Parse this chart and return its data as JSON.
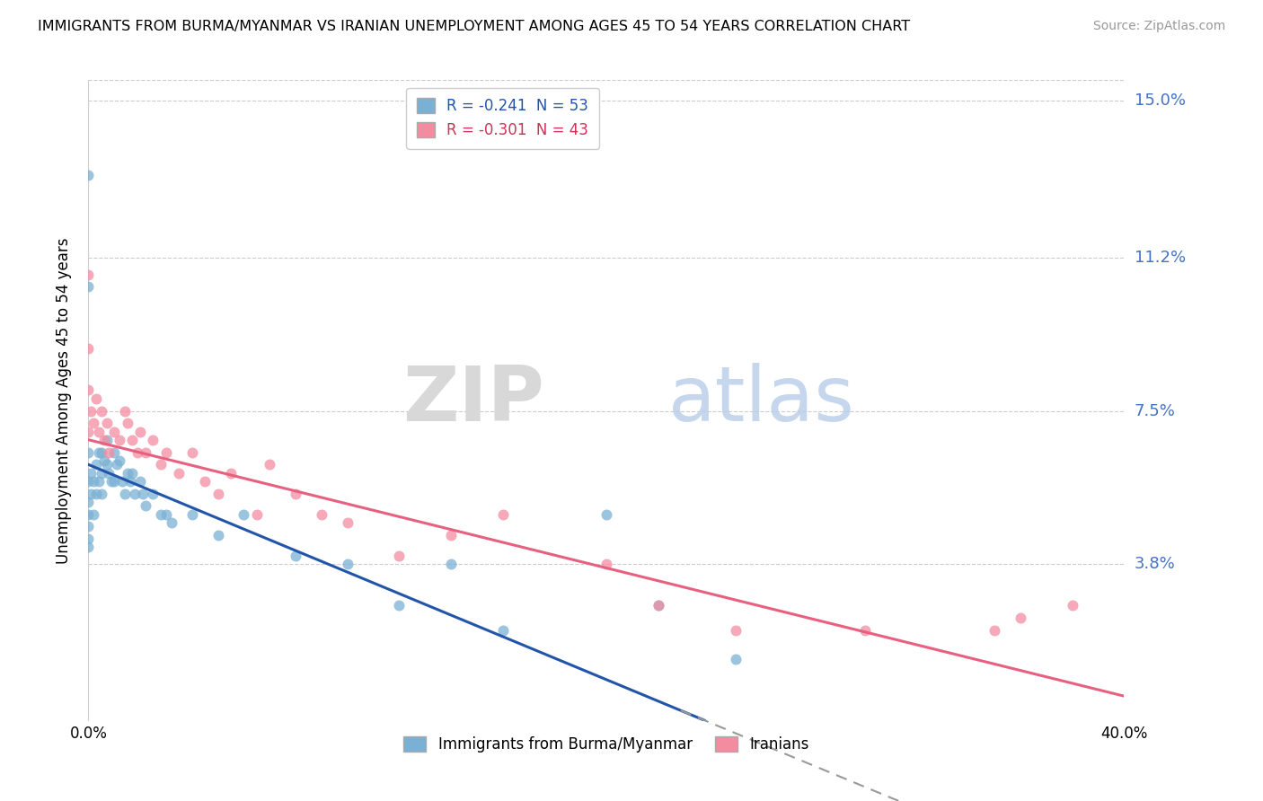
{
  "title": "IMMIGRANTS FROM BURMA/MYANMAR VS IRANIAN UNEMPLOYMENT AMONG AGES 45 TO 54 YEARS CORRELATION CHART",
  "source": "Source: ZipAtlas.com",
  "ylabel": "Unemployment Among Ages 45 to 54 years",
  "xmin": 0.0,
  "xmax": 0.4,
  "ymin": 0.0,
  "ymax": 0.155,
  "yticks": [
    0.0,
    0.038,
    0.075,
    0.112,
    0.15
  ],
  "ytick_labels": [
    "",
    "3.8%",
    "7.5%",
    "11.2%",
    "15.0%"
  ],
  "xtick_labels": [
    "0.0%",
    "40.0%"
  ],
  "r_blue": -0.241,
  "n_blue": 53,
  "r_pink": -0.301,
  "n_pink": 43,
  "color_blue": "#7ab0d4",
  "color_pink": "#f48ca0",
  "line_blue": "#2255aa",
  "line_pink": "#e86080",
  "legend_blue": "Immigrants from Burma/Myanmar",
  "legend_pink": "Iranians",
  "watermark_zip": "ZIP",
  "watermark_atlas": "atlas",
  "blue_intercept": 0.062,
  "blue_slope": -0.26,
  "pink_intercept": 0.068,
  "pink_slope": -0.155,
  "blue_scatter_x": [
    0.0,
    0.0,
    0.0,
    0.0,
    0.0,
    0.0,
    0.0,
    0.0,
    0.0,
    0.001,
    0.001,
    0.002,
    0.002,
    0.003,
    0.003,
    0.004,
    0.004,
    0.005,
    0.005,
    0.005,
    0.006,
    0.007,
    0.007,
    0.008,
    0.009,
    0.01,
    0.01,
    0.011,
    0.012,
    0.013,
    0.014,
    0.015,
    0.016,
    0.017,
    0.018,
    0.02,
    0.021,
    0.022,
    0.025,
    0.028,
    0.03,
    0.032,
    0.04,
    0.05,
    0.06,
    0.08,
    0.1,
    0.12,
    0.14,
    0.16,
    0.2,
    0.22,
    0.25
  ],
  "blue_scatter_y": [
    0.132,
    0.105,
    0.065,
    0.058,
    0.053,
    0.05,
    0.047,
    0.044,
    0.042,
    0.06,
    0.055,
    0.058,
    0.05,
    0.062,
    0.055,
    0.065,
    0.058,
    0.065,
    0.06,
    0.055,
    0.063,
    0.068,
    0.062,
    0.06,
    0.058,
    0.065,
    0.058,
    0.062,
    0.063,
    0.058,
    0.055,
    0.06,
    0.058,
    0.06,
    0.055,
    0.058,
    0.055,
    0.052,
    0.055,
    0.05,
    0.05,
    0.048,
    0.05,
    0.045,
    0.05,
    0.04,
    0.038,
    0.028,
    0.038,
    0.022,
    0.05,
    0.028,
    0.015
  ],
  "pink_scatter_x": [
    0.0,
    0.0,
    0.0,
    0.0,
    0.001,
    0.002,
    0.003,
    0.004,
    0.005,
    0.006,
    0.007,
    0.008,
    0.01,
    0.012,
    0.014,
    0.015,
    0.017,
    0.019,
    0.02,
    0.022,
    0.025,
    0.028,
    0.03,
    0.035,
    0.04,
    0.045,
    0.05,
    0.055,
    0.065,
    0.07,
    0.08,
    0.09,
    0.1,
    0.12,
    0.14,
    0.16,
    0.2,
    0.22,
    0.25,
    0.3,
    0.35,
    0.36,
    0.38
  ],
  "pink_scatter_y": [
    0.108,
    0.09,
    0.08,
    0.07,
    0.075,
    0.072,
    0.078,
    0.07,
    0.075,
    0.068,
    0.072,
    0.065,
    0.07,
    0.068,
    0.075,
    0.072,
    0.068,
    0.065,
    0.07,
    0.065,
    0.068,
    0.062,
    0.065,
    0.06,
    0.065,
    0.058,
    0.055,
    0.06,
    0.05,
    0.062,
    0.055,
    0.05,
    0.048,
    0.04,
    0.045,
    0.05,
    0.038,
    0.028,
    0.022,
    0.022,
    0.022,
    0.025,
    0.028
  ]
}
